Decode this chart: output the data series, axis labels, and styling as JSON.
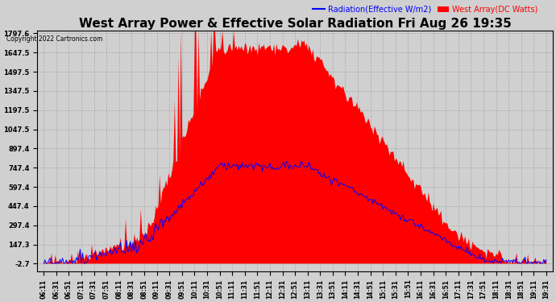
{
  "title": "West Array Power & Effective Solar Radiation Fri Aug 26 19:35",
  "copyright": "Copyright 2022 Cartronics.com",
  "legend_radiation": "Radiation(Effective W/m2)",
  "legend_west": "West Array(DC Watts)",
  "bg_color": "#d0d0d0",
  "yticks": [
    -2.7,
    147.3,
    297.4,
    447.4,
    597.4,
    747.4,
    897.4,
    1047.5,
    1197.5,
    1347.5,
    1497.5,
    1647.5,
    1797.6
  ],
  "ylim_min": -2.7,
  "ylim_max": 1797.6,
  "time_labels": [
    "06:11",
    "06:31",
    "06:51",
    "07:11",
    "07:31",
    "07:51",
    "08:11",
    "08:31",
    "08:51",
    "09:11",
    "09:31",
    "09:51",
    "10:11",
    "10:31",
    "10:51",
    "11:11",
    "11:31",
    "11:51",
    "12:11",
    "12:31",
    "12:51",
    "13:11",
    "13:31",
    "13:51",
    "14:11",
    "14:31",
    "14:51",
    "15:11",
    "15:31",
    "15:51",
    "16:11",
    "16:31",
    "16:51",
    "17:11",
    "17:31",
    "17:51",
    "18:11",
    "18:31",
    "18:51",
    "19:11",
    "19:31"
  ],
  "n_per_interval": 10,
  "title_fontsize": 11,
  "tick_fontsize": 6,
  "legend_fontsize": 7
}
